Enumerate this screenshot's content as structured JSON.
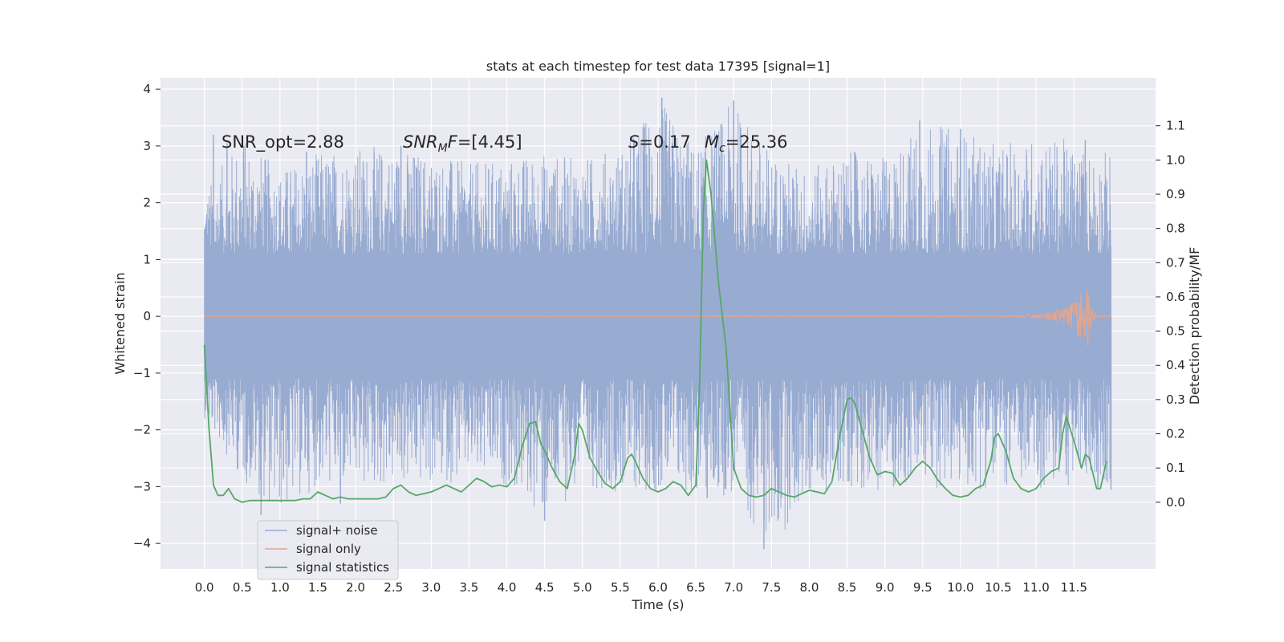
{
  "chart_data": {
    "type": "line",
    "title": "stats at each timestep for test data 17395 [signal=1]",
    "xlabel": "Time (s)",
    "ylabel_left": "Whitened strain",
    "ylabel_right": "Detection probability/MF",
    "xlim": [
      -0.58,
      12.58
    ],
    "ylim_left": [
      -4.45,
      4.2
    ],
    "ylim_right": [
      -0.195,
      1.24
    ],
    "grid": true,
    "legend_position": "lower-left",
    "x_ticks": [
      "0.0",
      "0.5",
      "1.0",
      "1.5",
      "2.0",
      "2.5",
      "3.0",
      "3.5",
      "4.0",
      "4.5",
      "5.0",
      "5.5",
      "6.0",
      "6.5",
      "7.0",
      "7.5",
      "8.0",
      "8.5",
      "9.0",
      "9.5",
      "10.0",
      "10.5",
      "11.0",
      "11.5"
    ],
    "y_ticks_left": [
      "4",
      "3",
      "2",
      "1",
      "0",
      "−1",
      "−2",
      "−3",
      "−4"
    ],
    "y_ticks_right": [
      "1.1",
      "1.0",
      "0.9",
      "0.8",
      "0.7",
      "0.6",
      "0.5",
      "0.4",
      "0.3",
      "0.2",
      "0.1",
      "0.0"
    ],
    "annotations": {
      "snr_opt": "SNR_opt=2.88",
      "snr_mf_main": "SNR",
      "snr_mf_sub": "M",
      "snr_mf_tail": "F",
      "snr_mf_value": "=[4.45]",
      "s_main": "S",
      "s_value": "=0.17",
      "mc_main": "M",
      "mc_sub": "c",
      "mc_value": "=25.36"
    },
    "colors": {
      "background": "#eaeaf2",
      "grid": "#ffffff",
      "noise": "#98abd1",
      "signal": "#e0a690",
      "stats": "#55a868"
    },
    "series": [
      {
        "name": "signal+ noise",
        "description_x_range": [
          0.0,
          11.99
        ],
        "envelope_sample_time": [
          0.0,
          0.5,
          1.0,
          1.5,
          2.0,
          2.5,
          3.0,
          3.5,
          4.0,
          4.5,
          5.0,
          5.5,
          6.0,
          6.5,
          7.0,
          7.5,
          8.0,
          8.5,
          9.0,
          9.5,
          10.0,
          10.5,
          11.0,
          11.5,
          11.99
        ],
        "envelope_upper": [
          2.2,
          3.2,
          2.6,
          2.9,
          3.0,
          3.0,
          2.9,
          2.7,
          2.8,
          2.9,
          2.8,
          3.0,
          3.85,
          3.0,
          3.8,
          2.9,
          2.6,
          2.9,
          2.8,
          3.45,
          3.3,
          3.0,
          3.2,
          3.1,
          2.9
        ],
        "envelope_lower": [
          -1.8,
          -2.9,
          -3.5,
          -3.0,
          -3.1,
          -3.0,
          -3.0,
          -2.9,
          -3.0,
          -3.6,
          -3.0,
          -3.1,
          -3.1,
          -3.2,
          -3.2,
          -4.1,
          -3.2,
          -3.0,
          -3.1,
          -3.0,
          -3.1,
          -3.0,
          -3.1,
          -3.0,
          -3.05
        ],
        "spikes": [
          {
            "x": 0.12,
            "y": 3.2
          },
          {
            "x": 0.3,
            "y": 3.05
          },
          {
            "x": 0.52,
            "y": 3.0
          },
          {
            "x": 0.75,
            "y": -3.5
          },
          {
            "x": 1.35,
            "y": 2.9
          },
          {
            "x": 1.8,
            "y": -3.3
          },
          {
            "x": 2.6,
            "y": 3.0
          },
          {
            "x": 4.5,
            "y": -3.6
          },
          {
            "x": 5.85,
            "y": 2.85
          },
          {
            "x": 6.05,
            "y": 3.85
          },
          {
            "x": 6.65,
            "y": -3.2
          },
          {
            "x": 7.0,
            "y": 3.8
          },
          {
            "x": 7.4,
            "y": -4.1
          },
          {
            "x": 8.6,
            "y": 2.9
          },
          {
            "x": 9.46,
            "y": 3.45
          },
          {
            "x": 10.0,
            "y": 3.3
          },
          {
            "x": 11.65,
            "y": 3.1
          },
          {
            "x": 11.99,
            "y": -3.05
          }
        ]
      },
      {
        "name": "signal only",
        "description_x_range": [
          0.0,
          11.99
        ],
        "chirp_peak_time": 11.68,
        "chirp_peak_amplitude": 0.6
      },
      {
        "name": "signal statistics",
        "axis": "right",
        "x": [
          0.0,
          0.06,
          0.12,
          0.18,
          0.25,
          0.32,
          0.4,
          0.5,
          0.6,
          0.7,
          0.8,
          0.9,
          1.0,
          1.1,
          1.2,
          1.3,
          1.4,
          1.5,
          1.6,
          1.7,
          1.8,
          1.9,
          2.0,
          2.1,
          2.2,
          2.3,
          2.4,
          2.5,
          2.6,
          2.7,
          2.8,
          2.9,
          3.0,
          3.1,
          3.2,
          3.3,
          3.4,
          3.5,
          3.6,
          3.7,
          3.8,
          3.9,
          4.0,
          4.1,
          4.2,
          4.3,
          4.38,
          4.45,
          4.5,
          4.6,
          4.7,
          4.8,
          4.9,
          4.95,
          5.0,
          5.1,
          5.2,
          5.3,
          5.4,
          5.5,
          5.6,
          5.65,
          5.7,
          5.8,
          5.9,
          6.0,
          6.1,
          6.2,
          6.3,
          6.4,
          6.5,
          6.55,
          6.6,
          6.64,
          6.7,
          6.8,
          6.9,
          7.0,
          7.1,
          7.2,
          7.3,
          7.4,
          7.5,
          7.6,
          7.7,
          7.8,
          7.9,
          8.0,
          8.1,
          8.2,
          8.3,
          8.4,
          8.5,
          8.55,
          8.6,
          8.7,
          8.8,
          8.9,
          9.0,
          9.1,
          9.2,
          9.3,
          9.4,
          9.5,
          9.6,
          9.7,
          9.8,
          9.9,
          10.0,
          10.1,
          10.2,
          10.3,
          10.4,
          10.45,
          10.5,
          10.6,
          10.7,
          10.8,
          10.9,
          11.0,
          11.1,
          11.2,
          11.3,
          11.35,
          11.4,
          11.5,
          11.6,
          11.65,
          11.7,
          11.8,
          11.85,
          11.93
        ],
        "values": [
          0.46,
          0.22,
          0.05,
          0.02,
          0.02,
          0.04,
          0.01,
          0.0,
          0.005,
          0.005,
          0.005,
          0.005,
          0.005,
          0.005,
          0.005,
          0.01,
          0.01,
          0.03,
          0.02,
          0.01,
          0.015,
          0.01,
          0.01,
          0.01,
          0.01,
          0.01,
          0.015,
          0.04,
          0.05,
          0.03,
          0.02,
          0.025,
          0.03,
          0.04,
          0.05,
          0.04,
          0.03,
          0.05,
          0.07,
          0.06,
          0.045,
          0.05,
          0.045,
          0.07,
          0.16,
          0.23,
          0.235,
          0.17,
          0.15,
          0.1,
          0.06,
          0.04,
          0.14,
          0.23,
          0.21,
          0.13,
          0.09,
          0.055,
          0.04,
          0.06,
          0.13,
          0.14,
          0.12,
          0.07,
          0.04,
          0.03,
          0.04,
          0.06,
          0.05,
          0.02,
          0.05,
          0.35,
          0.85,
          1.0,
          0.9,
          0.64,
          0.45,
          0.1,
          0.04,
          0.02,
          0.015,
          0.02,
          0.04,
          0.03,
          0.02,
          0.015,
          0.025,
          0.035,
          0.03,
          0.025,
          0.06,
          0.19,
          0.3,
          0.305,
          0.29,
          0.21,
          0.13,
          0.08,
          0.09,
          0.085,
          0.05,
          0.07,
          0.1,
          0.12,
          0.1,
          0.065,
          0.04,
          0.02,
          0.015,
          0.02,
          0.04,
          0.05,
          0.12,
          0.19,
          0.2,
          0.15,
          0.07,
          0.04,
          0.03,
          0.04,
          0.07,
          0.09,
          0.1,
          0.2,
          0.25,
          0.18,
          0.1,
          0.14,
          0.13,
          0.04,
          0.04,
          0.12
        ]
      }
    ]
  }
}
